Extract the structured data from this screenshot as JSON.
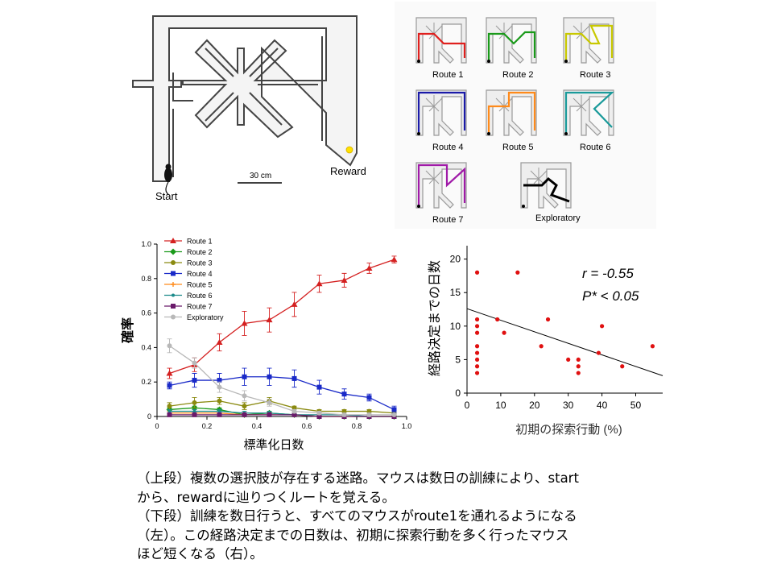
{
  "maze": {
    "start_label": "Start",
    "reward_label": "Reward",
    "scale_label": "30 cm",
    "reward_color": "#ffe000",
    "routes": [
      {
        "label": "Route 1",
        "color": "#e0201e"
      },
      {
        "label": "Route 2",
        "color": "#1a9a1a"
      },
      {
        "label": "Route 3",
        "color": "#c8c800"
      },
      {
        "label": "Route 4",
        "color": "#1a1aa8"
      },
      {
        "label": "Route 5",
        "color": "#ff8a1a"
      },
      {
        "label": "Route 6",
        "color": "#1a9a9a"
      },
      {
        "label": "Route 7",
        "color": "#a01aa8"
      },
      {
        "label": "Exploratory",
        "color": "#000000"
      }
    ]
  },
  "chart_data": [
    {
      "type": "line",
      "title": "",
      "xlabel": "標準化日数",
      "ylabel": "確率",
      "xlim": [
        0,
        1.0
      ],
      "ylim": [
        0,
        1.0
      ],
      "xticks": [
        "0",
        "0.2",
        "0.4",
        "0.6",
        "0.8",
        "1.0"
      ],
      "yticks": [
        "0",
        "0.2",
        "0.4",
        "0.6",
        "0.8",
        "1.0"
      ],
      "legend_position": "top-left",
      "x": [
        0.05,
        0.15,
        0.25,
        0.35,
        0.45,
        0.55,
        0.65,
        0.75,
        0.85,
        0.95
      ],
      "series": [
        {
          "name": "Route 1",
          "color": "#d42020",
          "marker": "triangle",
          "values": [
            0.25,
            0.3,
            0.43,
            0.54,
            0.56,
            0.65,
            0.77,
            0.79,
            0.86,
            0.91
          ],
          "err": [
            0.03,
            0.04,
            0.05,
            0.07,
            0.07,
            0.07,
            0.05,
            0.04,
            0.03,
            0.02
          ]
        },
        {
          "name": "Route 2",
          "color": "#1a9a1a",
          "marker": "diamond",
          "values": [
            0.04,
            0.05,
            0.04,
            0.01,
            0.02,
            0.01,
            0.0,
            0.0,
            0.0,
            0.0
          ],
          "err": [
            0.01,
            0.01,
            0.01,
            0.01,
            0.01,
            0.01,
            0.0,
            0.0,
            0.0,
            0.0
          ]
        },
        {
          "name": "Route 3",
          "color": "#8a8a10",
          "marker": "circle",
          "values": [
            0.06,
            0.08,
            0.09,
            0.06,
            0.09,
            0.05,
            0.03,
            0.03,
            0.03,
            0.02
          ],
          "err": [
            0.02,
            0.03,
            0.02,
            0.02,
            0.02,
            0.01,
            0.01,
            0.01,
            0.01,
            0.01
          ]
        },
        {
          "name": "Route 4",
          "color": "#1a2ac8",
          "marker": "square",
          "values": [
            0.18,
            0.21,
            0.21,
            0.23,
            0.23,
            0.22,
            0.17,
            0.13,
            0.11,
            0.04
          ],
          "err": [
            0.02,
            0.04,
            0.04,
            0.05,
            0.05,
            0.05,
            0.04,
            0.03,
            0.02,
            0.02
          ]
        },
        {
          "name": "Route 5",
          "color": "#ff8a1a",
          "marker": "plus",
          "values": [
            0.02,
            0.02,
            0.02,
            0.01,
            0.01,
            0.01,
            0.0,
            0.0,
            0.0,
            0.0
          ],
          "err": [
            0.01,
            0.01,
            0.01,
            0.01,
            0.01,
            0.0,
            0.0,
            0.0,
            0.0,
            0.0
          ]
        },
        {
          "name": "Route 6",
          "color": "#1a8a8a",
          "marker": "dot",
          "values": [
            0.03,
            0.03,
            0.03,
            0.02,
            0.02,
            0.01,
            0.01,
            0.01,
            0.0,
            0.0
          ],
          "err": [
            0.01,
            0.01,
            0.01,
            0.01,
            0.01,
            0.01,
            0.0,
            0.0,
            0.0,
            0.0
          ]
        },
        {
          "name": "Route 7",
          "color": "#6a1a6a",
          "marker": "square",
          "values": [
            0.01,
            0.01,
            0.01,
            0.01,
            0.01,
            0.01,
            0.0,
            0.0,
            0.0,
            0.0
          ],
          "err": [
            0.0,
            0.0,
            0.0,
            0.0,
            0.0,
            0.0,
            0.0,
            0.0,
            0.0,
            0.0
          ]
        },
        {
          "name": "Exploratory",
          "color": "#b8b8b8",
          "marker": "circle",
          "values": [
            0.41,
            0.31,
            0.17,
            0.12,
            0.08,
            0.03,
            0.02,
            0.01,
            0.01,
            0.01
          ],
          "err": [
            0.04,
            0.03,
            0.03,
            0.03,
            0.02,
            0.01,
            0.01,
            0.01,
            0.01,
            0.0
          ]
        }
      ]
    },
    {
      "type": "scatter",
      "title": "",
      "xlabel": "初期の探索行動 (%)",
      "ylabel": "経路決定までの日数",
      "xlim": [
        0,
        58
      ],
      "ylim": [
        0,
        22
      ],
      "xticks": [
        "0",
        "10",
        "20",
        "30",
        "40",
        "50"
      ],
      "yticks": [
        "0",
        "5",
        "10",
        "15",
        "20"
      ],
      "point_color": "#e01010",
      "points": [
        [
          3,
          18
        ],
        [
          3,
          11
        ],
        [
          3,
          10
        ],
        [
          3,
          9
        ],
        [
          3,
          7
        ],
        [
          3,
          6
        ],
        [
          3,
          5
        ],
        [
          3,
          4
        ],
        [
          3,
          3
        ],
        [
          9,
          11
        ],
        [
          11,
          9
        ],
        [
          15,
          18
        ],
        [
          22,
          7
        ],
        [
          24,
          11
        ],
        [
          30,
          5
        ],
        [
          33,
          5
        ],
        [
          33,
          4
        ],
        [
          33,
          3
        ],
        [
          39,
          6
        ],
        [
          40,
          10
        ],
        [
          46,
          4
        ],
        [
          55,
          7
        ]
      ],
      "trendline": {
        "x": [
          0,
          58
        ],
        "y": [
          12.6,
          2.6
        ]
      },
      "annotation_r": "r  =  -0.55",
      "annotation_p": "P*  < 0.05"
    }
  ],
  "caption": {
    "line1": "（上段）複数の選択肢が存在する迷路。マウスは数日の訓練により、start",
    "line2": "から、rewardに辿りつくルートを覚える。",
    "line3": "（下段）訓練を数日行うと、すべてのマウスがroute1を通れるようになる",
    "line4": "（左）。この経路決定までの日数は、初期に探索行動を多く行ったマウス",
    "line5": "ほど短くなる（右）。"
  }
}
